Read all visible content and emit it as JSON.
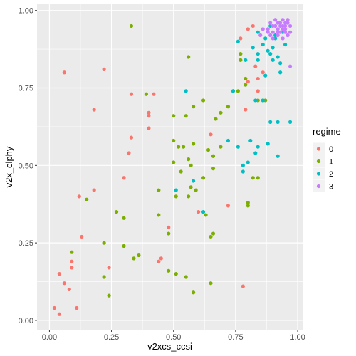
{
  "chart_data": {
    "type": "scatter",
    "xlabel": "v2xcs_ccsi",
    "ylabel": "v2x_clphy",
    "xlim": [
      -0.05,
      1.02
    ],
    "ylim": [
      -0.03,
      1.02
    ],
    "x_ticks": [
      0.0,
      0.25,
      0.5,
      0.75,
      1.0
    ],
    "x_tick_labels": [
      "0.00",
      "0.25",
      "0.50",
      "0.75",
      "1.00"
    ],
    "y_ticks": [
      0.0,
      0.25,
      0.5,
      0.75,
      1.0
    ],
    "y_tick_labels": [
      "0.00",
      "0.25",
      "0.50",
      "0.75",
      "1.00"
    ],
    "grid": true,
    "legend_position": "right",
    "legend_title": "regime",
    "series": [
      {
        "name": "0",
        "color": "#F8766D",
        "points": [
          [
            0.06,
            0.8
          ],
          [
            0.22,
            0.81
          ],
          [
            0.18,
            0.68
          ],
          [
            0.33,
            0.73
          ],
          [
            0.42,
            0.73
          ],
          [
            0.4,
            0.67
          ],
          [
            0.4,
            0.66
          ],
          [
            0.4,
            0.62
          ],
          [
            0.33,
            0.59
          ],
          [
            0.32,
            0.54
          ],
          [
            0.3,
            0.46
          ],
          [
            0.18,
            0.42
          ],
          [
            0.12,
            0.4
          ],
          [
            0.13,
            0.27
          ],
          [
            0.09,
            0.19
          ],
          [
            0.09,
            0.17
          ],
          [
            0.04,
            0.15
          ],
          [
            0.06,
            0.12
          ],
          [
            0.08,
            0.1
          ],
          [
            0.24,
            0.17
          ],
          [
            0.02,
            0.04
          ],
          [
            0.04,
            0.02
          ],
          [
            0.11,
            0.04
          ],
          [
            0.48,
            0.3
          ],
          [
            0.45,
            0.2
          ],
          [
            0.44,
            0.19
          ],
          [
            0.65,
            0.6
          ],
          [
            0.6,
            0.35
          ],
          [
            0.72,
            0.37
          ],
          [
            0.79,
            0.68
          ],
          [
            0.8,
            0.77
          ],
          [
            0.83,
            0.82
          ],
          [
            0.84,
            0.78
          ],
          [
            0.86,
            0.8
          ],
          [
            0.84,
            0.74
          ],
          [
            0.8,
            0.94
          ],
          [
            0.82,
            0.95
          ],
          [
            0.77,
            0.91
          ],
          [
            0.78,
            0.11
          ],
          [
            0.86,
            0.71
          ]
        ]
      },
      {
        "name": "1",
        "color": "#7CAE00",
        "points": [
          [
            0.33,
            0.95
          ],
          [
            0.56,
            0.85
          ],
          [
            0.39,
            0.73
          ],
          [
            0.62,
            0.71
          ],
          [
            0.55,
            0.66
          ],
          [
            0.58,
            0.69
          ],
          [
            0.5,
            0.66
          ],
          [
            0.67,
            0.65
          ],
          [
            0.69,
            0.67
          ],
          [
            0.72,
            0.69
          ],
          [
            0.74,
            0.74
          ],
          [
            0.76,
            0.74
          ],
          [
            0.77,
            0.86
          ],
          [
            0.77,
            0.84
          ],
          [
            0.79,
            0.78
          ],
          [
            0.79,
            0.76
          ],
          [
            0.84,
            0.71
          ],
          [
            0.86,
            0.71
          ],
          [
            0.87,
            0.71
          ],
          [
            0.5,
            0.58
          ],
          [
            0.52,
            0.56
          ],
          [
            0.54,
            0.56
          ],
          [
            0.56,
            0.52
          ],
          [
            0.57,
            0.5
          ],
          [
            0.58,
            0.57
          ],
          [
            0.64,
            0.55
          ],
          [
            0.66,
            0.53
          ],
          [
            0.69,
            0.56
          ],
          [
            0.5,
            0.51
          ],
          [
            0.53,
            0.48
          ],
          [
            0.56,
            0.4
          ],
          [
            0.57,
            0.43
          ],
          [
            0.59,
            0.42
          ],
          [
            0.62,
            0.46
          ],
          [
            0.66,
            0.49
          ],
          [
            0.51,
            0.4
          ],
          [
            0.44,
            0.42
          ],
          [
            0.44,
            0.34
          ],
          [
            0.48,
            0.28
          ],
          [
            0.63,
            0.34
          ],
          [
            0.65,
            0.27
          ],
          [
            0.66,
            0.28
          ],
          [
            0.8,
            0.37
          ],
          [
            0.8,
            0.38
          ],
          [
            0.82,
            0.46
          ],
          [
            0.84,
            0.46
          ],
          [
            0.15,
            0.39
          ],
          [
            0.27,
            0.35
          ],
          [
            0.3,
            0.33
          ],
          [
            0.22,
            0.25
          ],
          [
            0.3,
            0.24
          ],
          [
            0.34,
            0.2
          ],
          [
            0.36,
            0.21
          ],
          [
            0.09,
            0.22
          ],
          [
            0.22,
            0.14
          ],
          [
            0.24,
            0.08
          ],
          [
            0.48,
            0.16
          ],
          [
            0.51,
            0.15
          ],
          [
            0.55,
            0.14
          ],
          [
            0.58,
            0.09
          ],
          [
            0.65,
            0.12
          ]
        ]
      },
      {
        "name": "2",
        "color": "#00BFC4",
        "points": [
          [
            0.76,
            0.9
          ],
          [
            0.84,
            0.93
          ],
          [
            0.87,
            0.91
          ],
          [
            0.89,
            0.95
          ],
          [
            0.86,
            0.89
          ],
          [
            0.82,
            0.88
          ],
          [
            0.84,
            0.86
          ],
          [
            0.88,
            0.87
          ],
          [
            0.9,
            0.84
          ],
          [
            0.92,
            0.85
          ],
          [
            0.93,
            0.83
          ],
          [
            0.95,
            0.89
          ],
          [
            0.93,
            0.8
          ],
          [
            0.89,
            0.86
          ],
          [
            0.91,
            0.91
          ],
          [
            0.94,
            0.93
          ],
          [
            0.84,
            0.84
          ],
          [
            0.9,
            0.88
          ],
          [
            0.79,
            0.84
          ],
          [
            0.87,
            0.79
          ],
          [
            0.91,
            0.92
          ],
          [
            0.86,
            0.71
          ],
          [
            0.55,
            0.74
          ],
          [
            0.74,
            0.74
          ],
          [
            0.83,
            0.71
          ],
          [
            0.89,
            0.64
          ],
          [
            0.92,
            0.64
          ],
          [
            0.97,
            0.64
          ],
          [
            0.81,
            0.58
          ],
          [
            0.84,
            0.56
          ],
          [
            0.76,
            0.56
          ],
          [
            0.83,
            0.54
          ],
          [
            0.72,
            0.58
          ],
          [
            0.88,
            0.57
          ],
          [
            0.8,
            0.51
          ],
          [
            0.78,
            0.5
          ],
          [
            0.92,
            0.53
          ],
          [
            0.51,
            0.42
          ],
          [
            0.58,
            0.45
          ],
          [
            0.62,
            0.35
          ],
          [
            0.78,
            0.48
          ]
        ]
      },
      {
        "name": "3",
        "color": "#C77CFF",
        "points": [
          [
            0.88,
            0.94
          ],
          [
            0.9,
            0.95
          ],
          [
            0.92,
            0.96
          ],
          [
            0.94,
            0.97
          ],
          [
            0.96,
            0.96
          ],
          [
            0.93,
            0.93
          ],
          [
            0.95,
            0.94
          ],
          [
            0.97,
            0.95
          ],
          [
            0.92,
            0.92
          ],
          [
            0.94,
            0.91
          ],
          [
            0.96,
            0.92
          ],
          [
            0.91,
            0.95
          ],
          [
            0.93,
            0.96
          ],
          [
            0.89,
            0.92
          ],
          [
            0.95,
            0.96
          ],
          [
            0.9,
            0.93
          ],
          [
            0.86,
            0.94
          ],
          [
            0.88,
            0.93
          ],
          [
            0.91,
            0.97
          ],
          [
            0.95,
            0.93
          ],
          [
            0.93,
            0.95
          ],
          [
            0.94,
            0.95
          ],
          [
            0.96,
            0.97
          ],
          [
            0.97,
            0.93
          ],
          [
            0.89,
            0.96
          ],
          [
            0.92,
            0.94
          ],
          [
            0.94,
            0.94
          ],
          [
            0.85,
            0.92
          ],
          [
            0.9,
            0.91
          ],
          [
            0.96,
            0.92
          ],
          [
            0.97,
            0.82
          ],
          [
            0.92,
            0.93
          ],
          [
            0.95,
            0.95
          ]
        ]
      }
    ]
  }
}
